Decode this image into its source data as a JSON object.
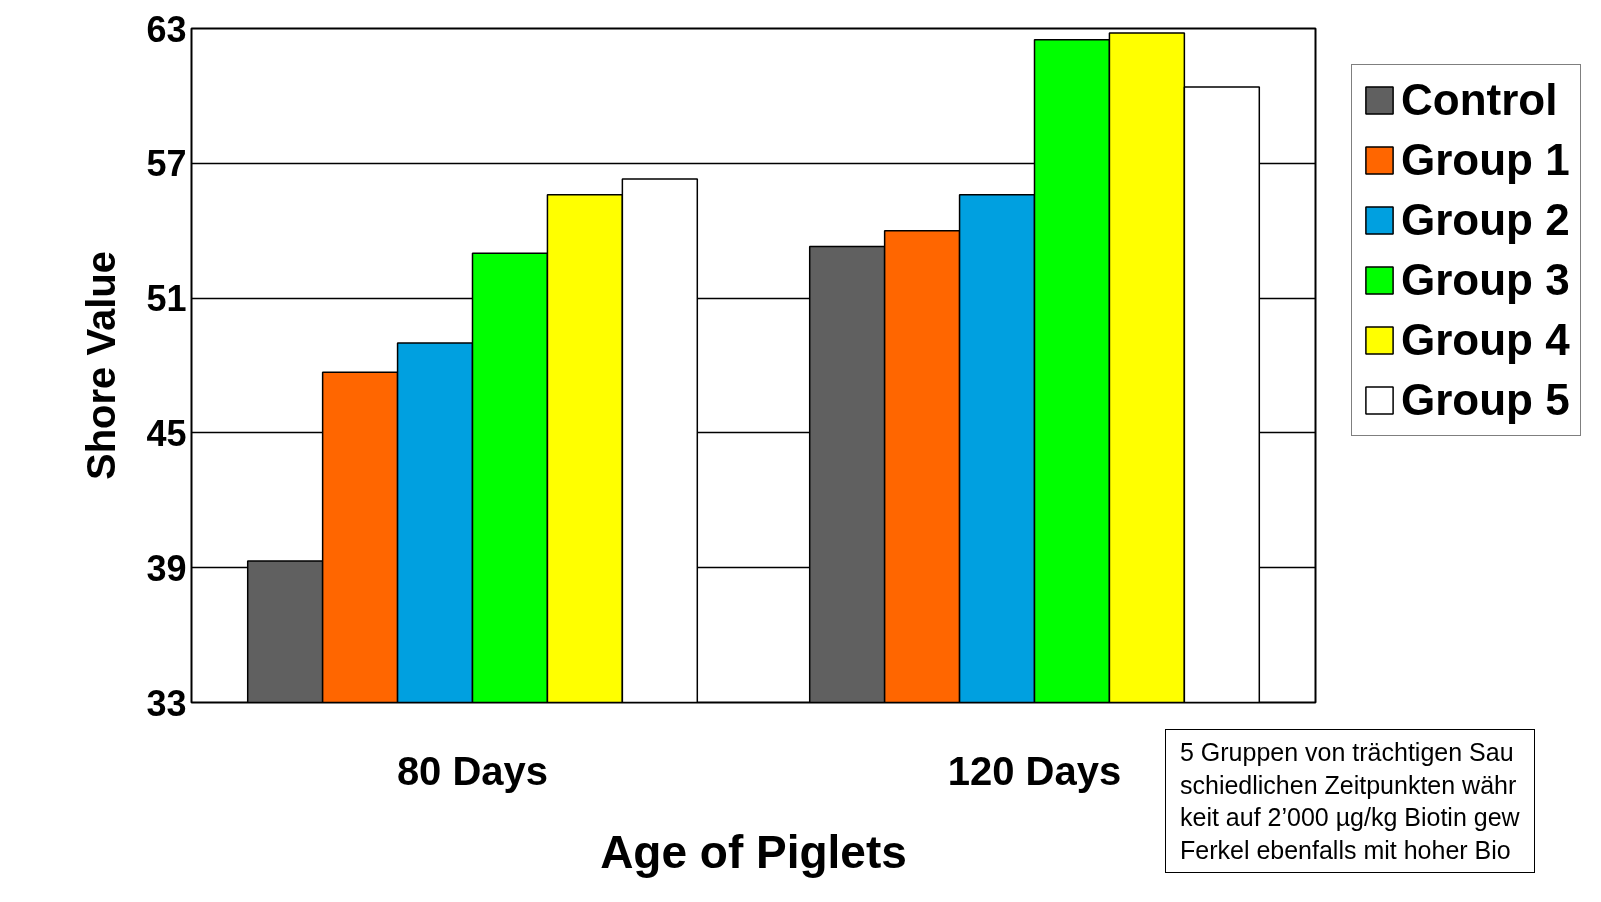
{
  "chart_data": {
    "type": "bar",
    "xlabel": "Age of Piglets",
    "ylabel": "Shore Value",
    "categories": [
      "80 Days",
      "120 Days"
    ],
    "series": [
      {
        "name": "Control",
        "color": "#606060",
        "values": [
          39.3,
          53.3
        ]
      },
      {
        "name": "Group 1",
        "color": "#ff6600",
        "values": [
          47.7,
          54.0
        ]
      },
      {
        "name": "Group 2",
        "color": "#00a0e0",
        "values": [
          49.0,
          55.6
        ]
      },
      {
        "name": "Group 3",
        "color": "#00ff00",
        "values": [
          53.0,
          62.5
        ]
      },
      {
        "name": "Group 4",
        "color": "#ffff00",
        "values": [
          55.6,
          62.8
        ]
      },
      {
        "name": "Group 5",
        "color": "#ffffff",
        "values": [
          56.3,
          60.4
        ]
      }
    ],
    "ylim": [
      33,
      63
    ],
    "yticks": [
      33,
      39,
      45,
      51,
      57,
      63
    ],
    "grid": "y",
    "legend": "right",
    "annotations": [
      "5 Gruppen von trächtigen Sau\nschiedlichen Zeitpunkten währ\nkeit auf 2’000 µg/kg Biotin gew\nFerkel ebenfalls mit hoher Bio"
    ]
  }
}
